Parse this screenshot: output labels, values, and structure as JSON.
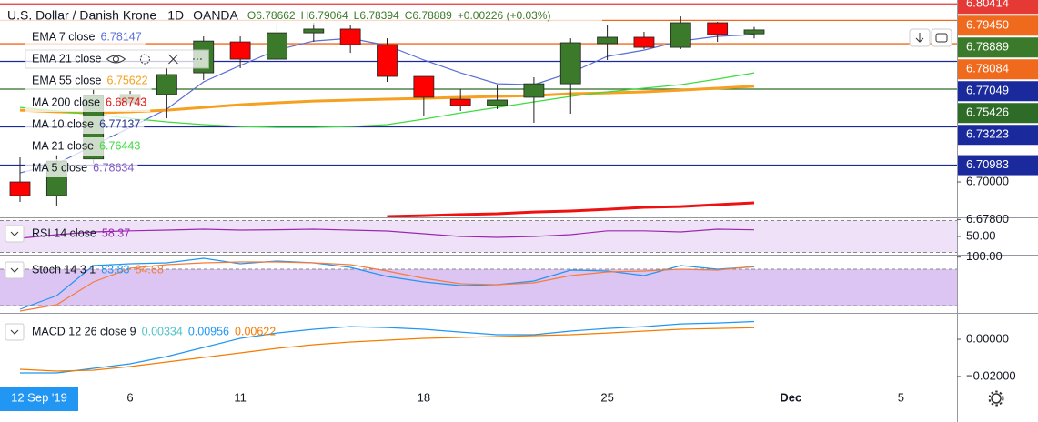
{
  "chart_data": [
    {
      "type": "candlestick",
      "title": "U.S. Dollar / Danish Krone",
      "interval": "1D",
      "source": "OANDA",
      "header_stats": [
        "O6.78662",
        "H6.79064",
        "L6.78394",
        "C6.78889",
        "+0.00226 (+0.03%)"
      ],
      "crosshair_label": "12 Sep '19",
      "categories": [
        null,
        null,
        null,
        "6",
        null,
        null,
        "11",
        null,
        null,
        null,
        null,
        "18",
        null,
        null,
        null,
        null,
        "25",
        null,
        null,
        null,
        null,
        "Dec",
        null,
        null,
        "5"
      ],
      "open": [
        6.7,
        6.692,
        6.7133,
        6.7463,
        6.7511,
        6.7638,
        6.7819,
        6.7718,
        6.7872,
        6.7894,
        6.7803,
        6.7617,
        6.7484,
        6.7447,
        6.7495,
        6.7574,
        6.7809,
        6.7846,
        6.7787,
        6.7931,
        6.78662,
        null,
        null,
        null,
        null
      ],
      "high": [
        6.7144,
        6.716,
        6.7543,
        6.7532,
        6.7665,
        6.7851,
        6.7851,
        6.7915,
        6.7931,
        6.7915,
        6.784,
        6.7617,
        6.7543,
        6.7564,
        6.7612,
        6.784,
        6.7915,
        6.7878,
        6.7968,
        6.7936,
        6.79064,
        null,
        null,
        null,
        null
      ],
      "low": [
        6.6883,
        6.6862,
        6.7106,
        6.7436,
        6.7372,
        6.7596,
        6.7665,
        6.7702,
        6.7819,
        6.7755,
        6.7585,
        6.7383,
        6.7415,
        6.7426,
        6.7346,
        6.7399,
        6.7713,
        6.7777,
        6.7777,
        6.7819,
        6.78394,
        null,
        null,
        null,
        null
      ],
      "close": [
        6.692,
        6.7122,
        6.7505,
        6.7511,
        6.7628,
        6.7824,
        6.7718,
        6.7872,
        6.7894,
        6.7803,
        6.7617,
        6.7495,
        6.7447,
        6.7479,
        6.7574,
        6.7814,
        6.7846,
        6.7787,
        6.7931,
        6.7862,
        6.78889,
        null,
        null,
        null,
        null
      ],
      "up_color": "#3c7a2b",
      "down_color": "#ff0000",
      "ylim": [
        6.6798,
        6.8064
      ],
      "yticks": [
        {
          "value": 6.678,
          "label": "6.67800"
        },
        {
          "value": 6.7,
          "label": "6.70000"
        }
      ],
      "indicators": [
        {
          "name": "EMA 7 close",
          "value": 6.78147,
          "color": "#5b6fd6",
          "values": [
            6.7053,
            6.7106,
            6.7213,
            6.7319,
            6.7426,
            6.7585,
            6.7681,
            6.7771,
            6.7824,
            6.784,
            6.7798,
            6.7713,
            6.7638,
            6.7574,
            6.7569,
            6.7638,
            6.7734,
            6.7771,
            6.7824,
            6.7851,
            6.7862,
            null,
            null,
            null,
            null
          ]
        },
        {
          "name": "EMA 21 close",
          "color": "#1a237e"
        },
        {
          "name": "EMA 55 close",
          "value": 6.75622,
          "color": "#f5a020",
          "values": [
            6.742,
            6.741,
            6.7404,
            6.741,
            6.742,
            6.7436,
            6.7452,
            6.7463,
            6.7473,
            6.7479,
            6.7484,
            6.7489,
            6.7495,
            6.75,
            6.7505,
            6.7516,
            6.7521,
            6.7527,
            6.7537,
            6.7548,
            6.7559,
            null,
            null,
            null,
            null
          ]
        },
        {
          "name": "MA 200 close",
          "value": 6.68743,
          "color": "#ee1111",
          "values": [
            null,
            null,
            null,
            null,
            null,
            null,
            null,
            null,
            null,
            null,
            6.6798,
            6.6803,
            6.6809,
            6.6814,
            6.6824,
            6.683,
            6.684,
            6.6851,
            6.6856,
            6.6867,
            6.6878,
            null,
            null,
            null,
            null
          ]
        },
        {
          "name": "MA 10 close",
          "value": 6.77137,
          "color": "#283593"
        },
        {
          "name": "MA 21 close",
          "value": 6.76443,
          "color": "#3ddc3d",
          "values": [
            6.7436,
            6.7415,
            6.7394,
            6.7372,
            6.7351,
            6.7335,
            6.7324,
            6.7319,
            6.7319,
            6.7324,
            6.7335,
            6.7367,
            6.7404,
            6.7436,
            6.7468,
            6.75,
            6.7527,
            6.7548,
            6.7569,
            6.7601,
            6.7638,
            null,
            null,
            null,
            null
          ]
        },
        {
          "name": "MA 5 close",
          "value": 6.78634,
          "color": "#7e57c2"
        }
      ],
      "price_lines": [
        {
          "value": 6.80414,
          "label": "6.80414",
          "color": "#e53935"
        },
        {
          "value": 6.7945,
          "label": "6.79450",
          "color": "#f06a1d"
        },
        {
          "value": 6.78889,
          "label": "6.78889",
          "color": "#3c7a2b",
          "show_line": false
        },
        {
          "value": 6.78084,
          "label": "6.78084",
          "color": "#f06a1d"
        },
        {
          "value": 6.77049,
          "label": "6.77049",
          "color": "#1a2a9c"
        },
        {
          "value": 6.75426,
          "label": "6.75426",
          "color": "#2e6b27"
        },
        {
          "value": 6.73223,
          "label": "6.73223",
          "color": "#1a2a9c"
        },
        {
          "value": 6.70983,
          "label": "6.70983",
          "color": "#1a2a9c"
        }
      ]
    },
    {
      "type": "line",
      "title": "RSI 14 close",
      "ylim": [
        27.14,
        72.86
      ],
      "yticks": [
        {
          "value": 50,
          "label": "50.00"
        }
      ],
      "band": [
        30,
        70
      ],
      "band_color": "#efe2f8",
      "series": [
        {
          "color": "#9c27b0",
          "values": [
            47.7,
            52.3,
            55.7,
            57.1,
            58.0,
            59.1,
            58.0,
            58.5,
            59.1,
            58.0,
            56.9,
            53.4,
            50.0,
            48.9,
            50.0,
            52.3,
            57.1,
            57.1,
            55.7,
            59.1,
            58.37,
            null,
            null,
            null,
            null
          ]
        }
      ]
    },
    {
      "type": "line",
      "title": "Stoch 14 3 1",
      "ylim": [
        9.5,
        101
      ],
      "yticks": [
        {
          "value": 100,
          "label": "100.00"
        }
      ],
      "band": [
        20,
        80
      ],
      "band_color": "#dcc4f3",
      "series": [
        {
          "color": "#2196f3",
          "values": [
            14,
            36.5,
            86,
            89,
            90.5,
            98,
            89,
            93.5,
            90.5,
            83,
            68,
            59,
            53,
            54.5,
            60.5,
            78.5,
            77,
            69.5,
            86,
            80,
            83.83,
            null,
            null,
            null,
            null
          ]
        },
        {
          "color": "#f57c3a",
          "values": [
            11,
            21.5,
            59,
            81.5,
            87.5,
            90.5,
            92,
            92,
            90.5,
            87.5,
            77,
            65,
            56,
            54.5,
            57.5,
            69.5,
            75.5,
            77,
            80,
            78.5,
            84.68,
            null,
            null,
            null,
            null
          ]
        }
      ]
    },
    {
      "type": "line",
      "title": "MACD 12 26 close 9",
      "ylim": [
        -0.0254,
        0.0137
      ],
      "yticks": [
        {
          "value": 0,
          "label": "0.00000"
        },
        {
          "value": -0.02,
          "label": "−0.02000"
        }
      ],
      "histogram": {
        "value": 0.00334,
        "color": "#4fc3c7"
      },
      "series": [
        {
          "color": "#2196f3",
          "values": [
            -0.01805,
            -0.01805,
            -0.01561,
            -0.01317,
            -0.00927,
            -0.00439,
            0.00049,
            0.00341,
            0.00537,
            0.00683,
            0.00634,
            0.00537,
            0.0039,
            0.00244,
            0.00244,
            0.00439,
            0.00585,
            0.00683,
            0.00829,
            0.00878,
            0.00956,
            null,
            null,
            null,
            null
          ]
        },
        {
          "color": "#f57c00",
          "values": [
            -0.0161,
            -0.01707,
            -0.01659,
            -0.01463,
            -0.0122,
            -0.00976,
            -0.00732,
            -0.00488,
            -0.00293,
            -0.00146,
            -0.00049,
            0.00049,
            0.00098,
            0.00146,
            0.00195,
            0.00244,
            0.00341,
            0.00439,
            0.00537,
            0.00585,
            0.00622,
            null,
            null,
            null,
            null
          ]
        }
      ]
    }
  ]
}
